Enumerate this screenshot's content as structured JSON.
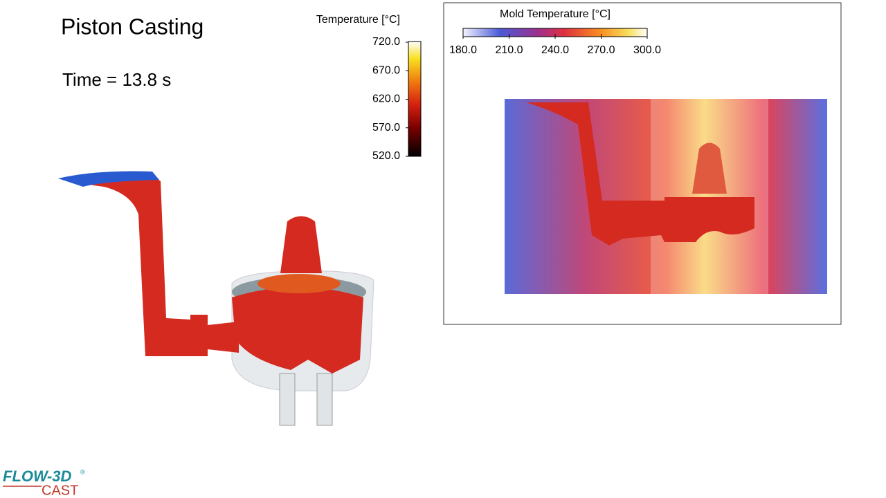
{
  "title": "Piston Casting",
  "time_label": "Time = 13.8 s",
  "colorbar": {
    "title": "Temperature [°C]",
    "ticks": [
      {
        "value": 720,
        "label": "720.0"
      },
      {
        "value": 670,
        "label": "670.0"
      },
      {
        "value": 620,
        "label": "620.0"
      },
      {
        "value": 570,
        "label": "570.0"
      },
      {
        "value": 520,
        "label": "520.0"
      }
    ]
  },
  "mold_colorbar": {
    "title": "Mold Temperature [°C]",
    "ticks": [
      {
        "value": 180,
        "label": "180.0"
      },
      {
        "value": 210,
        "label": "210.0"
      },
      {
        "value": 240,
        "label": "240.0"
      },
      {
        "value": 270,
        "label": "270.0"
      },
      {
        "value": 300,
        "label": "300.0"
      }
    ]
  },
  "logo": {
    "brand": "FLOW-3D",
    "trademark": "®",
    "product": "CAST"
  }
}
